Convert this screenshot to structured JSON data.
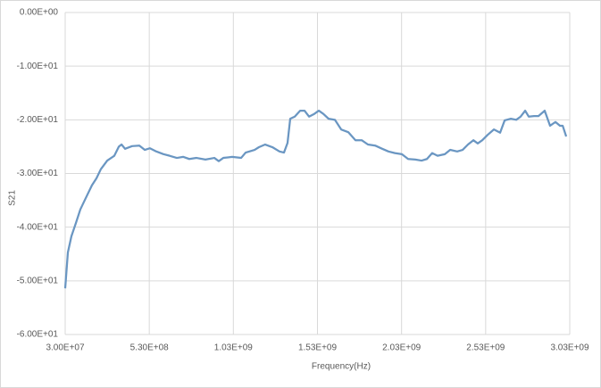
{
  "chart_data": {
    "type": "line",
    "xlabel": "Frequency(Hz)",
    "ylabel": "S21",
    "x": [
      30000000.0,
      46000000.0,
      67000000.0,
      94000000.0,
      120000000.0,
      152000000.0,
      189000000.0,
      216000000.0,
      242000000.0,
      280000000.0,
      322000000.0,
      349000000.0,
      365000000.0,
      386000000.0,
      428000000.0,
      471000000.0,
      503000000.0,
      534000000.0,
      572000000.0,
      614000000.0,
      651000000.0,
      694000000.0,
      731000000.0,
      768000000.0,
      811000000.0,
      864000000.0,
      917000000.0,
      943000000.0,
      970000000.0,
      1023000000.0,
      1076000000.0,
      1103000000.0,
      1156000000.0,
      1182000000.0,
      1219000000.0,
      1262000000.0,
      1304000000.0,
      1331000000.0,
      1352000000.0,
      1368000000.0,
      1395000000.0,
      1427000000.0,
      1453000000.0,
      1480000000.0,
      1511000000.0,
      1538000000.0,
      1565000000.0,
      1596000000.0,
      1634000000.0,
      1671000000.0,
      1713000000.0,
      1756000000.0,
      1793000000.0,
      1830000000.0,
      1873000000.0,
      1915000000.0,
      1952000000.0,
      1990000000.0,
      2032000000.0,
      2069000000.0,
      2112000000.0,
      2149000000.0,
      2181000000.0,
      2212000000.0,
      2244000000.0,
      2287000000.0,
      2319000000.0,
      2361000000.0,
      2393000000.0,
      2425000000.0,
      2457000000.0,
      2483000000.0,
      2510000000.0,
      2542000000.0,
      2579000000.0,
      2616000000.0,
      2643000000.0,
      2680000000.0,
      2712000000.0,
      2738000000.0,
      2765000000.0,
      2786000000.0,
      2818000000.0,
      2844000000.0,
      2881000000.0,
      2913000000.0,
      2945000000.0,
      2972000000.0,
      2988000000.0,
      3009000000.0
    ],
    "series": [
      {
        "color": "#6a96c2",
        "values": [
          -51.4,
          -44.7,
          -41.7,
          -39.2,
          -36.7,
          -34.6,
          -32.2,
          -30.9,
          -29.2,
          -27.6,
          -26.7,
          -25.0,
          -24.6,
          -25.4,
          -24.9,
          -24.8,
          -25.6,
          -25.3,
          -25.9,
          -26.4,
          -26.7,
          -27.1,
          -26.9,
          -27.3,
          -27.1,
          -27.4,
          -27.1,
          -27.7,
          -27.1,
          -26.9,
          -27.1,
          -26.1,
          -25.6,
          -25.1,
          -24.6,
          -25.1,
          -25.9,
          -26.1,
          -24.3,
          -19.8,
          -19.4,
          -18.3,
          -18.3,
          -19.4,
          -18.9,
          -18.3,
          -18.9,
          -19.8,
          -20.0,
          -21.8,
          -22.3,
          -23.8,
          -23.8,
          -24.6,
          -24.8,
          -25.4,
          -25.9,
          -26.2,
          -26.4,
          -27.3,
          -27.4,
          -27.6,
          -27.3,
          -26.2,
          -26.7,
          -26.4,
          -25.6,
          -25.9,
          -25.6,
          -24.6,
          -23.8,
          -24.4,
          -23.8,
          -22.8,
          -21.8,
          -22.4,
          -20.1,
          -19.8,
          -20.0,
          -19.4,
          -18.3,
          -19.4,
          -19.3,
          -19.3,
          -18.3,
          -21.1,
          -20.4,
          -21.1,
          -21.1,
          -23.1
        ]
      }
    ],
    "xlim": [
      30000000.0,
      3030000000.0
    ],
    "xticks": [
      {
        "value": 30000000.0,
        "label": "3.00E+07"
      },
      {
        "value": 530000000.0,
        "label": "5.30E+08"
      },
      {
        "value": 1030000000.0,
        "label": "1.03E+09"
      },
      {
        "value": 1530000000.0,
        "label": "1.53E+09"
      },
      {
        "value": 2030000000.0,
        "label": "2.03E+09"
      },
      {
        "value": 2530000000.0,
        "label": "2.53E+09"
      },
      {
        "value": 3030000000.0,
        "label": "3.03E+09"
      }
    ],
    "ylim": [
      -60,
      0
    ],
    "yticks": [
      {
        "value": -60,
        "label": "-6.00E+01"
      },
      {
        "value": -50,
        "label": "-5.00E+01"
      },
      {
        "value": -40,
        "label": "-4.00E+01"
      },
      {
        "value": -30,
        "label": "-3.00E+01"
      },
      {
        "value": -20,
        "label": "-2.00E+01"
      },
      {
        "value": -10,
        "label": "-1.00E+01"
      },
      {
        "value": 0,
        "label": "0.00E+00"
      }
    ],
    "grid": true
  }
}
